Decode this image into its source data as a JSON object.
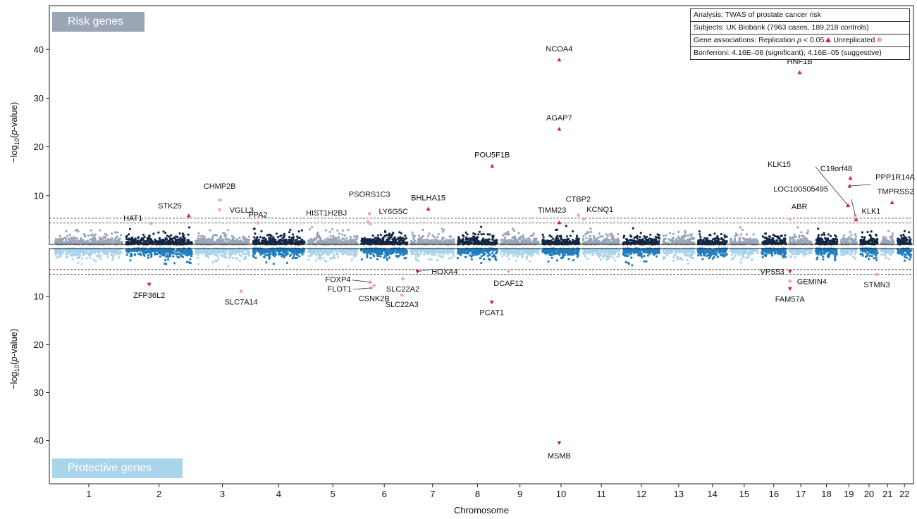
{
  "chart_data": {
    "type": "scatter",
    "subtype": "miami-plot",
    "xlabel": "Chromosome",
    "ylabel_top": "−log10(p-value)",
    "ylabel_bottom": "−log10(p-value)",
    "ylim_top": [
      0,
      49
    ],
    "ylim_bottom": [
      0,
      49
    ],
    "yticks": [
      10,
      20,
      30,
      40
    ],
    "chromosomes": [
      "1",
      "2",
      "3",
      "4",
      "5",
      "6",
      "7",
      "8",
      "9",
      "10",
      "11",
      "12",
      "13",
      "14",
      "15",
      "16",
      "17",
      "18",
      "19",
      "20",
      "21",
      "22"
    ],
    "chromosome_sizes": [
      249,
      243,
      198,
      191,
      182,
      171,
      159,
      146,
      141,
      136,
      135,
      134,
      115,
      107,
      102,
      90,
      83,
      80,
      59,
      64,
      47,
      51
    ],
    "thresholds": {
      "significant": 5.38,
      "suggestive": 4.38
    },
    "panel_labels": {
      "top": "Risk genes",
      "bottom": "Protective genes"
    },
    "legend": {
      "analysis": "Analysis: TWAS of prostate cancer risk",
      "subjects": "Subjects: UK Biobank (7963 cases, 189,218 controls)",
      "assoc_prefix": "Gene associations: Replication ",
      "assoc_p": "p",
      "assoc_mid": " < 0.05",
      "assoc_unrep": "Unreplicated",
      "bonferroni": "Bonferroni: 4.16E–06 (significant), 4.16E–05 (suggestive)"
    },
    "colors": {
      "top_odd": "#9aa5b5",
      "top_even": "#152747",
      "bottom_odd": "#a9d4ec",
      "bottom_even": "#1f7dbf",
      "replicated": "#d81b60",
      "unreplicated": "#f4a6b6"
    },
    "risk_genes": [
      {
        "gene": "NCOA4",
        "chr": 10,
        "pos": 0.45,
        "logp": 37.9,
        "rep": true
      },
      {
        "gene": "HNF1B",
        "chr": 17,
        "pos": 0.45,
        "logp": 35.3,
        "rep": true
      },
      {
        "gene": "AGAP7",
        "chr": 10,
        "pos": 0.45,
        "logp": 23.7,
        "rep": true
      },
      {
        "gene": "POU5F1B",
        "chr": 8,
        "pos": 0.87,
        "logp": 16.1,
        "rep": true
      },
      {
        "gene": "C19orf48",
        "chr": 19,
        "pos": 0.6,
        "logp": 13.6,
        "rep": true
      },
      {
        "gene": "PPP1R14A",
        "chr": 19,
        "pos": 0.55,
        "logp": 12.0,
        "rep": true
      },
      {
        "gene": "KLK15",
        "chr": 19,
        "pos": 0.45,
        "logp": 8.0,
        "rep": true
      },
      {
        "gene": "TMPRSS2",
        "chr": 21,
        "pos": 0.85,
        "logp": 8.6,
        "rep": true
      },
      {
        "gene": "CHMP2B",
        "chr": 3,
        "pos": 0.45,
        "logp": 9.1,
        "rep": false
      },
      {
        "gene": "VGLL3",
        "chr": 3,
        "pos": 0.45,
        "logp": 7.1,
        "rep": false
      },
      {
        "gene": "BHLHA15",
        "chr": 7,
        "pos": 0.4,
        "logp": 7.3,
        "rep": true
      },
      {
        "gene": "STK25",
        "chr": 2,
        "pos": 0.95,
        "logp": 5.9,
        "rep": true
      },
      {
        "gene": "HAT1",
        "chr": 2,
        "pos": 0.38,
        "logp": 4.3,
        "rep": false
      },
      {
        "gene": "PPA2",
        "chr": 4,
        "pos": 0.1,
        "logp": 4.4,
        "rep": false
      },
      {
        "gene": "PSORS1C3",
        "chr": 6,
        "pos": 0.18,
        "logp": 6.3,
        "rep": false
      },
      {
        "gene": "HIST1H2BJ",
        "chr": 6,
        "pos": 0.15,
        "logp": 4.6,
        "rep": false
      },
      {
        "gene": "LY6G5C",
        "chr": 6,
        "pos": 0.2,
        "logp": 4.2,
        "rep": false
      },
      {
        "gene": "TIMM23",
        "chr": 10,
        "pos": 0.45,
        "logp": 4.5,
        "rep": true
      },
      {
        "gene": "CTBP2",
        "chr": 10,
        "pos": 0.97,
        "logp": 6.0,
        "rep": false
      },
      {
        "gene": "KCNQ1",
        "chr": 11,
        "pos": 0.02,
        "logp": 5.2,
        "rep": false
      },
      {
        "gene": "LOC100505495",
        "chr": 19,
        "pos": 0.9,
        "logp": 5.9,
        "rep": false
      },
      {
        "gene": "ABR",
        "chr": 17,
        "pos": 0.02,
        "logp": 5.2,
        "rep": false
      },
      {
        "gene": "KLK1",
        "chr": 19,
        "pos": 0.95,
        "logp": 5.1,
        "rep": true
      }
    ],
    "protective_genes": [
      {
        "gene": "ZFP36L2",
        "chr": 2,
        "pos": 0.35,
        "logp": 7.5,
        "rep": true
      },
      {
        "gene": "SLC7A14",
        "chr": 3,
        "pos": 0.85,
        "logp": 8.9,
        "rep": false
      },
      {
        "gene": "FOXP4",
        "chr": 6,
        "pos": 0.2,
        "logp": 7.0,
        "rep": false
      },
      {
        "gene": "FLOT1",
        "chr": 6,
        "pos": 0.22,
        "logp": 8.2,
        "rep": false
      },
      {
        "gene": "CSNK2B",
        "chr": 6,
        "pos": 0.28,
        "logp": 7.7,
        "rep": false
      },
      {
        "gene": "SLC22A2",
        "chr": 6,
        "pos": 0.9,
        "logp": 6.3,
        "rep": false
      },
      {
        "gene": "SLC22A3",
        "chr": 6,
        "pos": 0.88,
        "logp": 9.7,
        "rep": false
      },
      {
        "gene": "HOXA4",
        "chr": 7,
        "pos": 0.15,
        "logp": 4.8,
        "rep": true
      },
      {
        "gene": "PCAT1",
        "chr": 8,
        "pos": 0.86,
        "logp": 11.2,
        "rep": true
      },
      {
        "gene": "DCAF12",
        "chr": 9,
        "pos": 0.2,
        "logp": 4.7,
        "rep": false
      },
      {
        "gene": "MSMB",
        "chr": 10,
        "pos": 0.45,
        "logp": 40.5,
        "rep": true
      },
      {
        "gene": "VPS53",
        "chr": 17,
        "pos": 0.02,
        "logp": 4.8,
        "rep": true
      },
      {
        "gene": "FAM57A",
        "chr": 17,
        "pos": 0.02,
        "logp": 8.4,
        "rep": true
      },
      {
        "gene": "GEMIN4",
        "chr": 17,
        "pos": 0.02,
        "logp": 6.8,
        "rep": false
      },
      {
        "gene": "STMN3",
        "chr": 20,
        "pos": 0.95,
        "logp": 5.4,
        "rep": false
      }
    ]
  }
}
